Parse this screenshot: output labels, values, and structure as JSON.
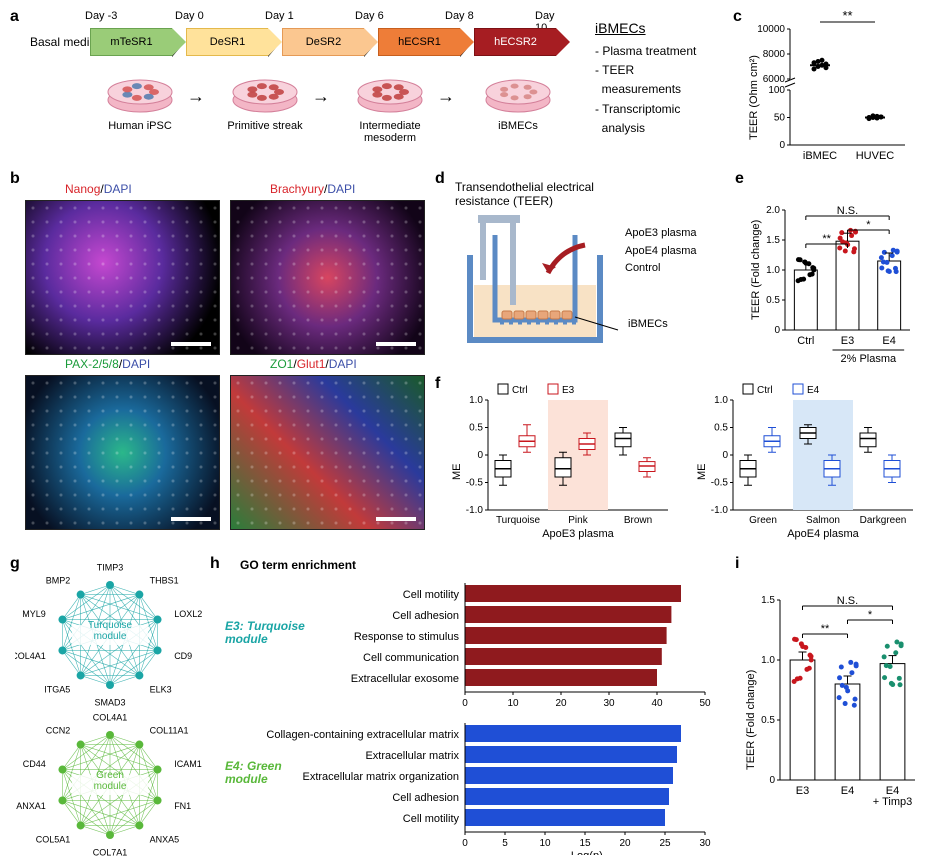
{
  "panel_a": {
    "basal_medium_label": "Basal\nmedium",
    "days": [
      "Day -3",
      "Day 0",
      "Day 1",
      "Day 6",
      "Day 8",
      "Day 10"
    ],
    "stages": [
      {
        "label": "mTeSR1",
        "bg": "#9acc78",
        "border": "#6aa350"
      },
      {
        "label": "DeSR1",
        "bg": "#ffe29b",
        "border": "#e4b94c"
      },
      {
        "label": "DeSR2",
        "bg": "#fbc790",
        "border": "#e59a56"
      },
      {
        "label": "hECSR1",
        "bg": "#ee7d38",
        "border": "#c75f1e"
      },
      {
        "label": "hECSR2",
        "bg": "#a61d22",
        "border": "#7d1114",
        "text": "#fff"
      }
    ],
    "dish_labels": [
      "Human iPSC",
      "Primitive streak",
      "Intermediate mesoderm",
      "iBMECs"
    ],
    "right_title": "iBMECs",
    "right_bullets": [
      "- Plasma treatment",
      "- TEER\n  measurements",
      "- Transcriptomic\n  analysis"
    ]
  },
  "panel_b": {
    "labels": [
      {
        "parts": [
          {
            "t": "Nanog",
            "c": "#d8242a"
          },
          {
            "t": "/",
            "c": "#000"
          },
          {
            "t": "DAPI",
            "c": "#3c4fa8"
          }
        ]
      },
      {
        "parts": [
          {
            "t": "Brachyury",
            "c": "#d8242a"
          },
          {
            "t": "/",
            "c": "#000"
          },
          {
            "t": "DAPI",
            "c": "#3c4fa8"
          }
        ]
      },
      {
        "parts": [
          {
            "t": "PAX-2/5/8",
            "c": "#1a9b3a"
          },
          {
            "t": "/",
            "c": "#000"
          },
          {
            "t": "DAPI",
            "c": "#3c4fa8"
          }
        ]
      },
      {
        "parts": [
          {
            "t": "ZO1",
            "c": "#1a9b3a"
          },
          {
            "t": "/",
            "c": "#000"
          },
          {
            "t": "Glut1",
            "c": "#d8242a"
          },
          {
            "t": "/",
            "c": "#000"
          },
          {
            "t": "DAPI",
            "c": "#3c4fa8"
          }
        ]
      }
    ]
  },
  "panel_c": {
    "ylabel": "TEER (Ohm cm²)",
    "ytick_upper": [
      "6000",
      "8000",
      "10000"
    ],
    "ytick_lower": [
      "0",
      "50",
      "100"
    ],
    "categories": [
      "iBMEC",
      "HUVEC"
    ],
    "sig": "**",
    "points": {
      "iBMEC": [
        6800,
        7000,
        7100,
        7200,
        7300,
        7400,
        7500,
        6900
      ],
      "HUVEC": [
        48,
        50,
        52,
        51,
        50,
        53,
        49,
        51
      ]
    },
    "point_color": "#000"
  },
  "panel_d": {
    "title": "Transendothelial electrical\nresistance (TEER)",
    "right_labels": [
      "ApoE3 plasma",
      "ApoE4 plasma",
      "Control"
    ],
    "bottom": "iBMECs"
  },
  "panel_e": {
    "ylabel": "TEER (Fold change)",
    "ylim": [
      0,
      2.0
    ],
    "yticks": [
      "0",
      "0.5",
      "1.0",
      "1.5",
      "2.0"
    ],
    "categories": [
      "Ctrl",
      "E3",
      "E4"
    ],
    "bottom_label": "2% Plasma",
    "bars": [
      1.0,
      1.48,
      1.15
    ],
    "colors": [
      "#000000",
      "#c8161d",
      "#1f4fd6"
    ],
    "sigs": [
      {
        "from": 0,
        "to": 1,
        "label": "**"
      },
      {
        "from": 1,
        "to": 2,
        "label": "*"
      },
      {
        "from": 0,
        "to": 2,
        "label": "N.S."
      }
    ]
  },
  "panel_f": {
    "ylabel": "ME",
    "ylim": [
      -1.0,
      1.0
    ],
    "yticks": [
      "-1.0",
      "-0.5",
      "0",
      "0.5",
      "1.0"
    ],
    "left": {
      "legend": [
        {
          "t": "Ctrl",
          "c": "#000"
        },
        {
          "t": "E3",
          "c": "#c8161d"
        }
      ],
      "xlabel": "ApoE3 plasma",
      "highlight_idx": 1,
      "highlight_color": "#fce2d8",
      "groups": [
        "Turquoise",
        "Pink",
        "Brown"
      ],
      "data": {
        "Ctrl": [
          {
            "med": -0.25,
            "q1": -0.4,
            "q3": -0.1,
            "lo": -0.55,
            "hi": 0.0
          },
          {
            "med": -0.25,
            "q1": -0.4,
            "q3": -0.05,
            "lo": -0.55,
            "hi": 0.05
          },
          {
            "med": 0.3,
            "q1": 0.15,
            "q3": 0.4,
            "lo": 0.0,
            "hi": 0.5
          }
        ],
        "E3": [
          {
            "med": 0.25,
            "q1": 0.15,
            "q3": 0.35,
            "lo": 0.05,
            "hi": 0.55
          },
          {
            "med": 0.2,
            "q1": 0.1,
            "q3": 0.3,
            "lo": 0.0,
            "hi": 0.4
          },
          {
            "med": -0.2,
            "q1": -0.3,
            "q3": -0.12,
            "lo": -0.4,
            "hi": -0.05
          }
        ]
      }
    },
    "right": {
      "legend": [
        {
          "t": "Ctrl",
          "c": "#000"
        },
        {
          "t": "E4",
          "c": "#1f4fd6"
        }
      ],
      "xlabel": "ApoE4 plasma",
      "highlight_idx": 1,
      "highlight_color": "#d7e7f7",
      "groups": [
        "Green",
        "Salmon",
        "Darkgreen"
      ],
      "data": {
        "Ctrl": [
          {
            "med": -0.25,
            "q1": -0.4,
            "q3": -0.1,
            "lo": -0.55,
            "hi": 0.0
          },
          {
            "med": 0.4,
            "q1": 0.3,
            "q3": 0.5,
            "lo": 0.2,
            "hi": 0.55
          },
          {
            "med": 0.3,
            "q1": 0.15,
            "q3": 0.4,
            "lo": 0.05,
            "hi": 0.5
          }
        ],
        "E4": [
          {
            "med": 0.25,
            "q1": 0.15,
            "q3": 0.35,
            "lo": 0.05,
            "hi": 0.5
          },
          {
            "med": -0.25,
            "q1": -0.4,
            "q3": -0.1,
            "lo": -0.55,
            "hi": 0.0
          },
          {
            "med": -0.25,
            "q1": -0.4,
            "q3": -0.1,
            "lo": -0.5,
            "hi": 0.0
          }
        ]
      }
    }
  },
  "panel_g": {
    "modules": [
      {
        "name": "Turquoise module",
        "color": "#1aa5a5",
        "nodes": [
          "TIMP3",
          "THBS1",
          "LOXL2",
          "CD9",
          "ELK3",
          "SMAD3",
          "ITGA5",
          "COL4A1",
          "MYL9",
          "BMP2"
        ]
      },
      {
        "name": "Green module",
        "color": "#59b83a",
        "nodes": [
          "COL4A1",
          "COL11A1",
          "ICAM1",
          "FN1",
          "ANXA5",
          "COL7A1",
          "COL5A1",
          "ANXA1",
          "CD44",
          "CCN2"
        ]
      }
    ]
  },
  "panel_h": {
    "title": "GO term enrichment",
    "xlabel": "-Log(p)",
    "top": {
      "label": "E3: Turquoise\nmodule",
      "label_color": "#1aa5a5",
      "color": "#8f1a1e",
      "xlim": [
        0,
        50
      ],
      "xticks": [
        "0",
        "10",
        "20",
        "30",
        "40",
        "50"
      ],
      "items": [
        {
          "t": "Cell motility",
          "v": 45
        },
        {
          "t": "Cell adhesion",
          "v": 43
        },
        {
          "t": "Response to stimulus",
          "v": 42
        },
        {
          "t": "Cell communication",
          "v": 41
        },
        {
          "t": "Extracellular exosome",
          "v": 40
        }
      ]
    },
    "bottom": {
      "label": "E4: Green\nmodule",
      "label_color": "#59b83a",
      "color": "#1f4fd6",
      "xlim": [
        0,
        30
      ],
      "xticks": [
        "0",
        "5",
        "10",
        "15",
        "20",
        "25",
        "30"
      ],
      "items": [
        {
          "t": "Collagen-containing extracellular matrix",
          "v": 27
        },
        {
          "t": "Extracellular matrix",
          "v": 26.5
        },
        {
          "t": "Extracellular matrix organization",
          "v": 26
        },
        {
          "t": "Cell adhesion",
          "v": 25.5
        },
        {
          "t": "Cell motility",
          "v": 25
        }
      ]
    }
  },
  "panel_i": {
    "ylabel": "TEER (Fold change)",
    "ylim": [
      0,
      1.5
    ],
    "yticks": [
      "0",
      "0.5",
      "1.0",
      "1.5"
    ],
    "categories": [
      "E3",
      "E4",
      "E4\n+ Timp3"
    ],
    "bars": [
      1.0,
      0.8,
      0.97
    ],
    "colors": [
      "#c8161d",
      "#1f4fd6",
      "#1a8f6e"
    ],
    "sigs": [
      {
        "from": 0,
        "to": 1,
        "label": "**"
      },
      {
        "from": 1,
        "to": 2,
        "label": "*"
      },
      {
        "from": 0,
        "to": 2,
        "label": "N.S."
      }
    ]
  }
}
